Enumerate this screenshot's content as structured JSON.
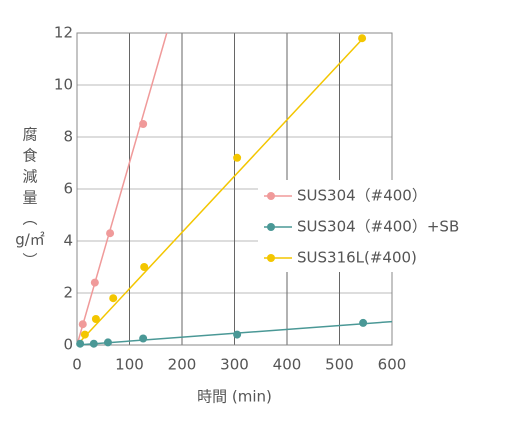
{
  "chart_data": {
    "type": "line",
    "x_label": "時間 (min)",
    "y_label_lines": [
      "腐",
      "食",
      "減",
      "量",
      "︵",
      "g/㎡",
      "︶"
    ],
    "xlim": [
      0,
      600
    ],
    "xticks": [
      0,
      100,
      200,
      300,
      400,
      500,
      600
    ],
    "ylim": [
      0,
      12
    ],
    "yticks": [
      0,
      2,
      4,
      6,
      8,
      10,
      12
    ],
    "grid": true,
    "legend": "right",
    "series": [
      {
        "name": "SUS304（#400）",
        "color": "#f09a9a",
        "x": [
          11,
          34,
          63,
          126
        ],
        "values": [
          0.8,
          2.4,
          4.3,
          8.5
        ],
        "fit_x": [
          0,
          171
        ],
        "fit_values": [
          0,
          12
        ]
      },
      {
        "name": "SUS304（#400）+SB",
        "color": "#4a9896",
        "x": [
          6,
          32,
          59,
          126,
          305,
          545
        ],
        "values": [
          0.05,
          0.05,
          0.1,
          0.25,
          0.4,
          0.85
        ],
        "fit_x": [
          0,
          600
        ],
        "fit_values": [
          0,
          0.9
        ]
      },
      {
        "name": "SUS316L(#400)",
        "color": "#f3c600",
        "x": [
          15,
          36,
          69,
          128,
          305,
          543
        ],
        "values": [
          0.4,
          1.0,
          1.8,
          3.0,
          7.2,
          11.8
        ],
        "fit_x": [
          0,
          545
        ],
        "fit_values": [
          0,
          11.8
        ]
      }
    ]
  }
}
